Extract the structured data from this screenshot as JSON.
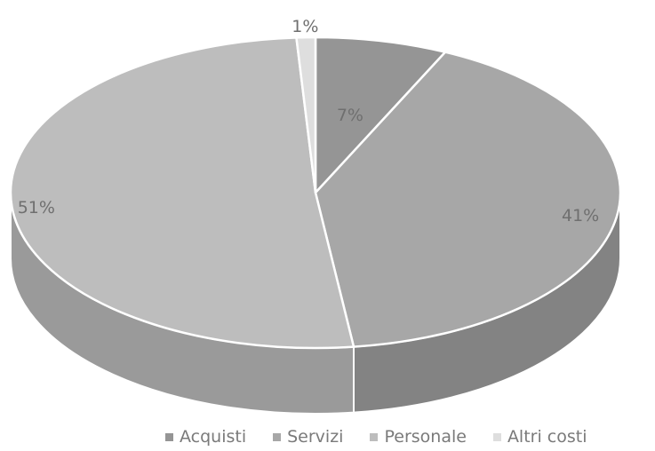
{
  "chart_data": {
    "type": "pie",
    "style": "3d",
    "categories": [
      "Acquisti",
      "Servizi",
      "Personale",
      "Altri costi"
    ],
    "values": [
      7,
      41,
      51,
      1
    ],
    "data_labels": [
      "7%",
      "41%",
      "51%",
      "1%"
    ],
    "colors": {
      "Acquisti": "#959595",
      "Servizi": "#a7a7a7",
      "Personale": "#bdbdbd",
      "Altri costi": "#dedede"
    },
    "side_colors": {
      "Acquisti": "#6e6e6e",
      "Servizi": "#838383",
      "Personale": "#9a9a9a",
      "Altri costi": "#c4c4c4"
    },
    "legend_position": "bottom",
    "title": ""
  }
}
